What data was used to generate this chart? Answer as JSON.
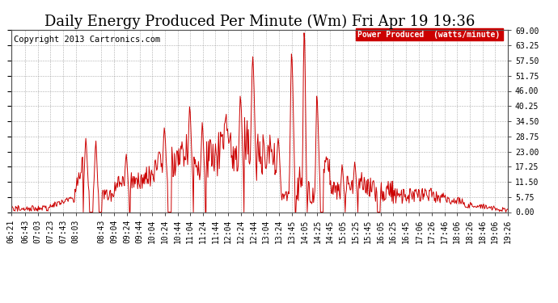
{
  "title": "Daily Energy Produced Per Minute (Wm) Fri Apr 19 19:36",
  "copyright": "Copyright 2013 Cartronics.com",
  "legend_label": "Power Produced  (watts/minute)",
  "legend_bg": "#cc0000",
  "legend_text_color": "#ffffff",
  "line_color": "#cc0000",
  "bg_color": "#ffffff",
  "grid_color": "#999999",
  "ylim": [
    0,
    69.0
  ],
  "yticks": [
    0.0,
    5.75,
    11.5,
    17.25,
    23.0,
    28.75,
    34.5,
    40.25,
    46.0,
    51.75,
    57.5,
    63.25,
    69.0
  ],
  "ytick_labels": [
    "0.00",
    "5.75",
    "11.50",
    "17.25",
    "23.00",
    "28.75",
    "34.50",
    "40.25",
    "46.00",
    "51.75",
    "57.50",
    "63.25",
    "69.00"
  ],
  "xtick_labels": [
    "06:21",
    "06:43",
    "07:03",
    "07:23",
    "07:43",
    "08:03",
    "08:43",
    "09:04",
    "09:24",
    "09:44",
    "10:04",
    "10:24",
    "10:44",
    "11:04",
    "11:24",
    "11:44",
    "12:04",
    "12:24",
    "12:44",
    "13:04",
    "13:24",
    "13:45",
    "14:05",
    "14:25",
    "14:45",
    "15:05",
    "15:25",
    "15:45",
    "16:05",
    "16:25",
    "16:45",
    "17:06",
    "17:26",
    "17:46",
    "18:06",
    "18:26",
    "18:46",
    "19:06",
    "19:26"
  ],
  "title_fontsize": 13,
  "tick_fontsize": 7,
  "copyright_fontsize": 7.5,
  "legend_fontsize": 7
}
